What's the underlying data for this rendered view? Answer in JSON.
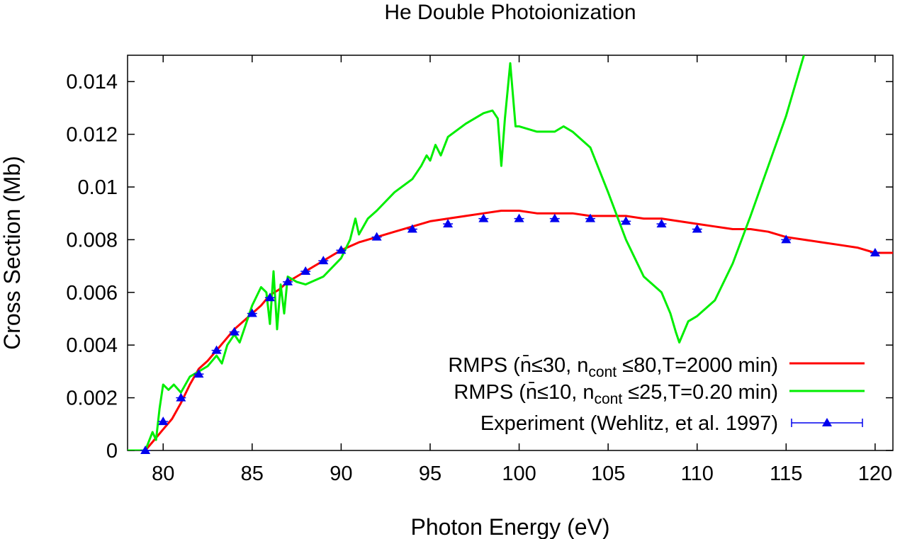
{
  "chart_data": {
    "type": "line",
    "title": "He Double Photoionization",
    "xlabel": "Photon Energy (eV)",
    "ylabel": "Cross Section (Mb)",
    "xlim": [
      78,
      121
    ],
    "ylim": [
      0,
      0.015
    ],
    "xticks": [
      80,
      85,
      90,
      95,
      100,
      105,
      110,
      115,
      120
    ],
    "yticks": [
      0,
      0.002,
      0.004,
      0.006,
      0.008,
      0.01,
      0.012,
      0.014
    ],
    "xtick_labels": [
      "80",
      "85",
      "90",
      "95",
      "100",
      "105",
      "110",
      "115",
      "120"
    ],
    "ytick_labels": [
      "0",
      "0.002",
      "0.004",
      "0.006",
      "0.008",
      "0.01",
      "0.012",
      "0.014"
    ],
    "grid": false,
    "legend_position": "bottom-right",
    "series": [
      {
        "name": "RMPS (n̄≤30, n",
        "name_sub": "cont",
        "name_tail": " ≤80,T=2000 min)",
        "color": "#ff0000",
        "x": [
          78,
          79,
          79.5,
          80,
          80.5,
          81,
          81.5,
          82,
          82.5,
          83,
          83.5,
          84,
          84.5,
          85,
          85.5,
          86,
          86.5,
          87,
          87.5,
          88,
          88.5,
          89,
          89.5,
          90,
          91,
          92,
          93,
          94,
          95,
          96,
          97,
          98,
          99,
          100,
          101,
          102,
          103,
          104,
          105,
          106,
          107,
          108,
          109,
          110,
          111,
          112,
          113,
          114,
          115,
          116,
          117,
          118,
          119,
          120,
          121
        ],
        "y": [
          0,
          0,
          0.0004,
          0.0008,
          0.0012,
          0.0018,
          0.0025,
          0.0031,
          0.0034,
          0.0038,
          0.0042,
          0.0046,
          0.0049,
          0.0052,
          0.0055,
          0.0059,
          0.0061,
          0.0064,
          0.0066,
          0.0068,
          0.007,
          0.0072,
          0.0074,
          0.0076,
          0.0079,
          0.0081,
          0.0083,
          0.0085,
          0.0087,
          0.0088,
          0.0089,
          0.009,
          0.0091,
          0.0091,
          0.009,
          0.009,
          0.009,
          0.0089,
          0.0089,
          0.0089,
          0.0088,
          0.0088,
          0.0087,
          0.0086,
          0.0085,
          0.0084,
          0.0084,
          0.0083,
          0.0081,
          0.008,
          0.0079,
          0.0078,
          0.0077,
          0.0075,
          0.0075
        ]
      },
      {
        "name": "RMPS (n̄≤10, n",
        "name_sub": "cont",
        "name_tail": " ≤25,T=0.20  min)",
        "color": "#00ee00",
        "x": [
          78,
          79,
          79.4,
          79.6,
          79.8,
          80,
          80.3,
          80.6,
          81,
          81.5,
          82,
          82.5,
          83,
          83.3,
          83.6,
          84,
          84.3,
          84.6,
          85,
          85.5,
          85.8,
          86,
          86.2,
          86.4,
          86.6,
          86.8,
          87,
          87.5,
          88,
          89,
          90,
          90.5,
          90.8,
          91,
          91.5,
          92,
          93,
          94,
          94.5,
          94.8,
          95,
          95.3,
          95.6,
          96,
          97,
          98,
          98.5,
          98.8,
          99,
          99.2,
          99.5,
          99.8,
          100,
          101,
          102,
          102.5,
          103,
          104,
          105,
          106,
          107,
          108,
          108.5,
          108.8,
          109,
          109.5,
          110,
          111,
          112,
          113,
          114,
          115,
          116
        ],
        "y": [
          0,
          0,
          0.0007,
          0.0004,
          0.0016,
          0.0025,
          0.0023,
          0.0025,
          0.0022,
          0.0028,
          0.003,
          0.0032,
          0.0036,
          0.0033,
          0.004,
          0.0044,
          0.0041,
          0.0047,
          0.0055,
          0.0062,
          0.006,
          0.0048,
          0.0068,
          0.0046,
          0.0063,
          0.0052,
          0.0066,
          0.0064,
          0.0063,
          0.0066,
          0.0073,
          0.008,
          0.0088,
          0.0082,
          0.0088,
          0.0091,
          0.0098,
          0.0103,
          0.0108,
          0.0112,
          0.011,
          0.0116,
          0.0112,
          0.0119,
          0.0124,
          0.0128,
          0.0129,
          0.0126,
          0.0108,
          0.0126,
          0.0147,
          0.0123,
          0.0123,
          0.0121,
          0.0121,
          0.0123,
          0.0121,
          0.0115,
          0.0098,
          0.008,
          0.0066,
          0.006,
          0.0052,
          0.0045,
          0.0041,
          0.0049,
          0.0051,
          0.0057,
          0.0071,
          0.0089,
          0.0108,
          0.0127,
          0.015
        ]
      }
    ],
    "experiment": {
      "name": "Experiment (Wehlitz, et al. 1997)",
      "color": "#0000ee",
      "marker": "triangle",
      "x": [
        79,
        80,
        81,
        82,
        83,
        84,
        85,
        86,
        87,
        88,
        89,
        90,
        92,
        94,
        96,
        98,
        100,
        102,
        104,
        106,
        108,
        110,
        115,
        120
      ],
      "y": [
        0,
        0.0011,
        0.002,
        0.0029,
        0.0038,
        0.0045,
        0.0052,
        0.0058,
        0.0064,
        0.0068,
        0.0072,
        0.0076,
        0.0081,
        0.0084,
        0.0086,
        0.0088,
        0.0088,
        0.0088,
        0.0088,
        0.0087,
        0.0086,
        0.0084,
        0.008,
        0.0075
      ]
    }
  }
}
